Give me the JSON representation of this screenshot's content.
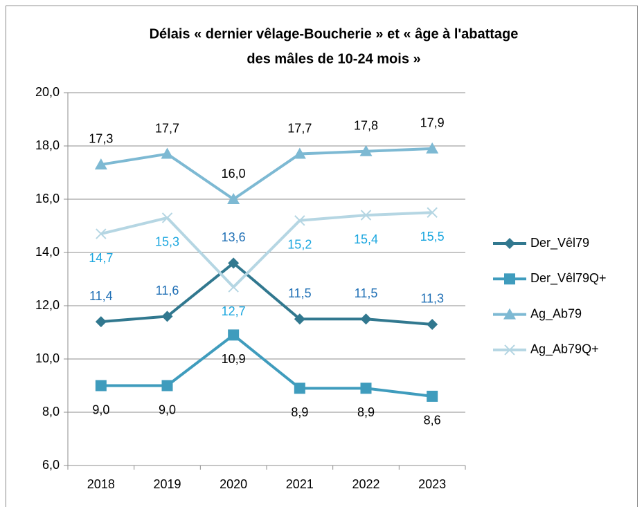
{
  "chart_data": {
    "type": "line",
    "title": [
      "Délais « dernier vêlage-Boucherie » et « âge à l'abattage",
      "des mâles de 10-24 mois »"
    ],
    "categories": [
      "2018",
      "2019",
      "2020",
      "2021",
      "2022",
      "2023"
    ],
    "series": [
      {
        "name": "Der_Vêl79",
        "color": "#31788f",
        "marker": "diamond",
        "label_color": "#1f6fb5",
        "label_position": "above",
        "values": [
          11.4,
          11.6,
          13.6,
          11.5,
          11.5,
          11.3
        ],
        "value_labels": [
          "11,4",
          "11,6",
          "13,6",
          "11,5",
          "11,5",
          "11,3"
        ]
      },
      {
        "name": "Der_Vêl79Q+",
        "color": "#3f9cbd",
        "marker": "square",
        "label_color": "#000000",
        "label_position": "below",
        "values": [
          9.0,
          9.0,
          10.9,
          8.9,
          8.9,
          8.6
        ],
        "value_labels": [
          "9,0",
          "9,0",
          "10,9",
          "8,9",
          "8,9",
          "8,6"
        ]
      },
      {
        "name": "Ag_Ab79",
        "color": "#7db9d3",
        "marker": "triangle",
        "label_color": "#000000",
        "label_position": "above",
        "values": [
          17.3,
          17.7,
          16.0,
          17.7,
          17.8,
          17.9
        ],
        "value_labels": [
          "17,3",
          "17,7",
          "16,0",
          "17,7",
          "17,8",
          "17,9"
        ]
      },
      {
        "name": "Ag_Ab79Q+",
        "color": "#b5d6e3",
        "marker": "cross",
        "label_color": "#1aa6df",
        "label_position": "below",
        "values": [
          14.7,
          15.3,
          12.7,
          15.2,
          15.4,
          15.5
        ],
        "value_labels": [
          "14,7",
          "15,3",
          "12,7",
          "15,2",
          "15,4",
          "15,5"
        ]
      }
    ],
    "ylim": [
      6,
      20
    ],
    "yticks": [
      {
        "value": 6,
        "label": "6,0"
      },
      {
        "value": 8,
        "label": "8,0"
      },
      {
        "value": 10,
        "label": "10,0"
      },
      {
        "value": 12,
        "label": "12,0"
      },
      {
        "value": 14,
        "label": "14,0"
      },
      {
        "value": 16,
        "label": "16,0"
      },
      {
        "value": 18,
        "label": "18,0"
      },
      {
        "value": 20,
        "label": "20,0"
      }
    ],
    "grid": true,
    "legend": "right"
  }
}
